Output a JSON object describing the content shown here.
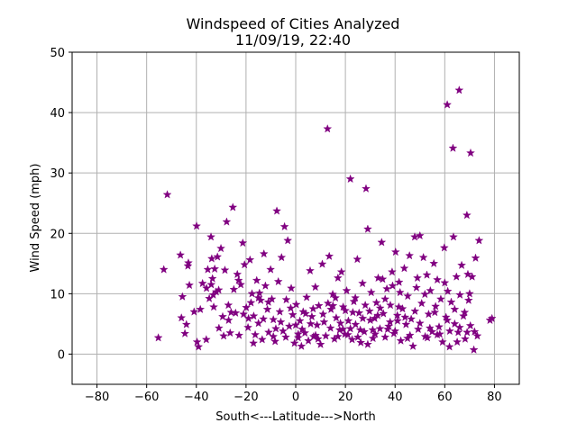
{
  "chart_data": {
    "type": "scatter",
    "title": "Windspeed of Cities Analyzed",
    "subtitle": "11/09/19, 22:40",
    "xlabel": "South<---Latitude--->North",
    "ylabel": "Wind Speed (mph)",
    "xlim": [
      -90,
      90
    ],
    "ylim": [
      -5,
      50
    ],
    "xticks": [
      -80,
      -60,
      -40,
      -20,
      0,
      20,
      40,
      60,
      80
    ],
    "yticks": [
      0,
      10,
      20,
      30,
      40,
      50
    ],
    "grid": true,
    "marker": "star",
    "marker_color": "#800080",
    "points": [
      [
        -55.3,
        2.7
      ],
      [
        -53.1,
        14.0
      ],
      [
        -51.7,
        26.4
      ],
      [
        -46.4,
        16.4
      ],
      [
        -45.6,
        9.5
      ],
      [
        -46.0,
        6.0
      ],
      [
        -44.6,
        3.4
      ],
      [
        -43.2,
        15.1
      ],
      [
        -43.4,
        14.6
      ],
      [
        -42.8,
        11.4
      ],
      [
        -40.9,
        7.0
      ],
      [
        -39.9,
        21.2
      ],
      [
        -39.7,
        2.0
      ],
      [
        -39.1,
        1.2
      ],
      [
        -38.4,
        7.4
      ],
      [
        -37.5,
        11.7
      ],
      [
        -35.9,
        10.9
      ],
      [
        -35.4,
        14.0
      ],
      [
        -34.8,
        9.2
      ],
      [
        -34.1,
        19.4
      ],
      [
        -33.8,
        15.8
      ],
      [
        -33.5,
        12.5
      ],
      [
        -33.0,
        7.8
      ],
      [
        -32.6,
        14.1
      ],
      [
        -32.0,
        10.3
      ],
      [
        -31.5,
        16.1
      ],
      [
        -30.9,
        4.3
      ],
      [
        -30.1,
        17.5
      ],
      [
        -29.4,
        6.2
      ],
      [
        -28.5,
        13.9
      ],
      [
        -27.8,
        21.9
      ],
      [
        -27.1,
        8.1
      ],
      [
        -26.4,
        3.5
      ],
      [
        -25.3,
        24.3
      ],
      [
        -24.9,
        10.7
      ],
      [
        -24.2,
        6.8
      ],
      [
        -23.5,
        13.2
      ],
      [
        -22.8,
        3.1
      ],
      [
        -22.1,
        11.5
      ],
      [
        -21.3,
        18.4
      ],
      [
        -20.6,
        14.8
      ],
      [
        -19.9,
        7.7
      ],
      [
        -19.2,
        4.4
      ],
      [
        -18.4,
        15.6
      ],
      [
        -17.6,
        10.0
      ],
      [
        -16.9,
        6.3
      ],
      [
        -16.3,
        3.2
      ],
      [
        -15.7,
        12.2
      ],
      [
        -15.0,
        5.1
      ],
      [
        -14.1,
        8.9
      ],
      [
        -13.5,
        2.4
      ],
      [
        -12.8,
        16.6
      ],
      [
        -12.2,
        11.3
      ],
      [
        -11.4,
        7.4
      ],
      [
        -10.9,
        3.6
      ],
      [
        -10.1,
        14.0
      ],
      [
        -9.6,
        9.1
      ],
      [
        -9.0,
        5.7
      ],
      [
        -8.3,
        2.1
      ],
      [
        -7.6,
        23.7
      ],
      [
        -7.0,
        12.0
      ],
      [
        -6.4,
        7.0
      ],
      [
        -5.7,
        16.0
      ],
      [
        -5.1,
        3.8
      ],
      [
        -4.5,
        21.1
      ],
      [
        -3.8,
        9.0
      ],
      [
        -3.2,
        18.8
      ],
      [
        -2.6,
        4.6
      ],
      [
        -1.8,
        10.9
      ],
      [
        -1.2,
        6.5
      ],
      [
        -0.5,
        1.8
      ],
      [
        0.2,
        8.2
      ],
      [
        1.0,
        2.7
      ],
      [
        1.7,
        5.5
      ],
      [
        2.3,
        1.3
      ],
      [
        3.0,
        7.0
      ],
      [
        3.7,
        3.5
      ],
      [
        4.4,
        9.4
      ],
      [
        5.1,
        2.2
      ],
      [
        5.8,
        13.8
      ],
      [
        6.5,
        6.2
      ],
      [
        7.2,
        2.9
      ],
      [
        7.9,
        11.1
      ],
      [
        8.6,
        4.8
      ],
      [
        9.3,
        8.0
      ],
      [
        10.0,
        1.6
      ],
      [
        10.7,
        14.9
      ],
      [
        11.4,
        5.3
      ],
      [
        12.1,
        3.0
      ],
      [
        12.8,
        37.3
      ],
      [
        13.5,
        16.2
      ],
      [
        14.2,
        7.4
      ],
      [
        14.9,
        9.9
      ],
      [
        15.6,
        2.5
      ],
      [
        16.3,
        6.0
      ],
      [
        17.0,
        12.6
      ],
      [
        17.7,
        4.0
      ],
      [
        18.4,
        13.6
      ],
      [
        19.1,
        7.8
      ],
      [
        19.8,
        3.3
      ],
      [
        20.5,
        10.5
      ],
      [
        21.2,
        5.5
      ],
      [
        22.0,
        29.0
      ],
      [
        22.7,
        2.4
      ],
      [
        23.4,
        8.7
      ],
      [
        24.1,
        4.9
      ],
      [
        24.8,
        15.7
      ],
      [
        25.5,
        6.8
      ],
      [
        26.2,
        1.9
      ],
      [
        26.9,
        11.7
      ],
      [
        27.6,
        3.7
      ],
      [
        28.3,
        27.4
      ],
      [
        29.0,
        20.7
      ],
      [
        29.7,
        7.1
      ],
      [
        30.4,
        10.2
      ],
      [
        31.1,
        2.6
      ],
      [
        31.8,
        5.9
      ],
      [
        32.5,
        8.5
      ],
      [
        33.2,
        12.6
      ],
      [
        33.9,
        4.2
      ],
      [
        34.6,
        18.5
      ],
      [
        35.3,
        6.7
      ],
      [
        36.0,
        2.8
      ],
      [
        36.7,
        10.8
      ],
      [
        37.4,
        4.6
      ],
      [
        38.1,
        8.1
      ],
      [
        38.8,
        13.6
      ],
      [
        39.5,
        3.4
      ],
      [
        40.2,
        16.9
      ],
      [
        40.9,
        6.4
      ],
      [
        41.6,
        11.9
      ],
      [
        42.3,
        2.2
      ],
      [
        43.0,
        7.5
      ],
      [
        43.7,
        14.2
      ],
      [
        44.4,
        4.9
      ],
      [
        45.1,
        9.6
      ],
      [
        45.8,
        16.3
      ],
      [
        46.5,
        5.8
      ],
      [
        47.2,
        1.3
      ],
      [
        47.9,
        19.4
      ],
      [
        48.6,
        11.0
      ],
      [
        49.3,
        4.1
      ],
      [
        50.0,
        19.6
      ],
      [
        50.7,
        8.4
      ],
      [
        51.4,
        16.0
      ],
      [
        52.1,
        2.9
      ],
      [
        52.8,
        13.1
      ],
      [
        53.5,
        6.6
      ],
      [
        54.2,
        10.5
      ],
      [
        54.9,
        3.7
      ],
      [
        55.6,
        15.0
      ],
      [
        56.3,
        7.9
      ],
      [
        57.0,
        12.3
      ],
      [
        57.7,
        4.5
      ],
      [
        58.4,
        9.1
      ],
      [
        59.1,
        2.0
      ],
      [
        59.8,
        17.6
      ],
      [
        60.5,
        6.1
      ],
      [
        61.0,
        41.3
      ],
      [
        61.2,
        10.4
      ],
      [
        61.9,
        1.2
      ],
      [
        62.6,
        8.6
      ],
      [
        63.3,
        34.1
      ],
      [
        63.5,
        19.4
      ],
      [
        64.0,
        5.0
      ],
      [
        64.7,
        12.8
      ],
      [
        65.4,
        3.6
      ],
      [
        65.8,
        43.7
      ],
      [
        66.1,
        9.8
      ],
      [
        66.8,
        14.7
      ],
      [
        67.5,
        6.3
      ],
      [
        68.2,
        2.5
      ],
      [
        68.9,
        23.0
      ],
      [
        69.3,
        13.2
      ],
      [
        69.6,
        8.9
      ],
      [
        70.3,
        4.7
      ],
      [
        70.4,
        33.3
      ],
      [
        71.0,
        12.8
      ],
      [
        71.7,
        0.7
      ],
      [
        72.4,
        15.9
      ],
      [
        73.1,
        3.0
      ],
      [
        73.8,
        18.8
      ],
      [
        78.2,
        5.6
      ],
      [
        79.0,
        5.9
      ],
      [
        -34.0,
        11.5
      ],
      [
        -33.2,
        9.8
      ],
      [
        -31.0,
        10.6
      ],
      [
        -26.0,
        6.9
      ],
      [
        -21.0,
        6.6
      ],
      [
        -18.0,
        8.5
      ],
      [
        -14.6,
        10.1
      ],
      [
        -11.0,
        8.6
      ],
      [
        -6.0,
        5.3
      ],
      [
        -2.0,
        7.6
      ],
      [
        2.6,
        4.1
      ],
      [
        6.0,
        5.0
      ],
      [
        8.0,
        3.1
      ],
      [
        11.0,
        6.6
      ],
      [
        14.0,
        4.3
      ],
      [
        16.0,
        9.3
      ],
      [
        18.0,
        5.1
      ],
      [
        20.0,
        7.2
      ],
      [
        22.0,
        4.2
      ],
      [
        24.0,
        9.3
      ],
      [
        26.0,
        4.0
      ],
      [
        28.0,
        8.1
      ],
      [
        30.0,
        5.6
      ],
      [
        32.0,
        3.3
      ],
      [
        34.0,
        7.6
      ],
      [
        36.0,
        9.1
      ],
      [
        38.0,
        5.3
      ],
      [
        40.0,
        3.8
      ],
      [
        42.0,
        10.2
      ],
      [
        44.0,
        6.1
      ],
      [
        46.0,
        3.1
      ],
      [
        48.0,
        7.1
      ],
      [
        50.0,
        5.1
      ],
      [
        52.0,
        9.9
      ],
      [
        54.0,
        4.3
      ],
      [
        56.0,
        6.9
      ],
      [
        58.0,
        3.3
      ],
      [
        60.0,
        11.8
      ],
      [
        62.0,
        3.8
      ],
      [
        64.0,
        7.4
      ],
      [
        66.0,
        4.4
      ],
      [
        68.0,
        6.9
      ],
      [
        70.0,
        10.0
      ],
      [
        72.0,
        3.7
      ],
      [
        -44.0,
        4.9
      ],
      [
        -36.0,
        2.4
      ],
      [
        -29.0,
        3.0
      ],
      [
        -23.0,
        12.2
      ],
      [
        -17.0,
        1.8
      ],
      [
        -13.0,
        5.8
      ],
      [
        -8.0,
        4.2
      ],
      [
        -4.0,
        2.8
      ],
      [
        0.0,
        4.8
      ],
      [
        4.0,
        6.7
      ],
      [
        9.0,
        2.5
      ],
      [
        13.0,
        8.4
      ],
      [
        17.0,
        2.9
      ],
      [
        21.0,
        3.2
      ],
      [
        25.0,
        2.8
      ],
      [
        29.0,
        1.6
      ],
      [
        33.0,
        6.4
      ],
      [
        37.0,
        4.1
      ],
      [
        41.0,
        5.5
      ],
      [
        45.0,
        2.6
      ],
      [
        49.0,
        12.6
      ],
      [
        53.0,
        2.7
      ],
      [
        57.0,
        3.2
      ],
      [
        61.0,
        5.6
      ],
      [
        65.0,
        2.0
      ],
      [
        69.0,
        3.6
      ],
      [
        41.5,
        7.8
      ],
      [
        39.0,
        11.3
      ],
      [
        35.0,
        12.4
      ],
      [
        31.0,
        4.0
      ],
      [
        27.0,
        5.9
      ],
      [
        23.0,
        6.9
      ],
      [
        19.0,
        4.1
      ],
      [
        15.0,
        8.0
      ],
      [
        7.0,
        7.5
      ],
      [
        1.0,
        3.3
      ],
      [
        -9.0,
        2.9
      ],
      [
        -15.0,
        9.3
      ],
      [
        -19.0,
        5.9
      ],
      [
        -27.0,
        5.6
      ]
    ]
  }
}
